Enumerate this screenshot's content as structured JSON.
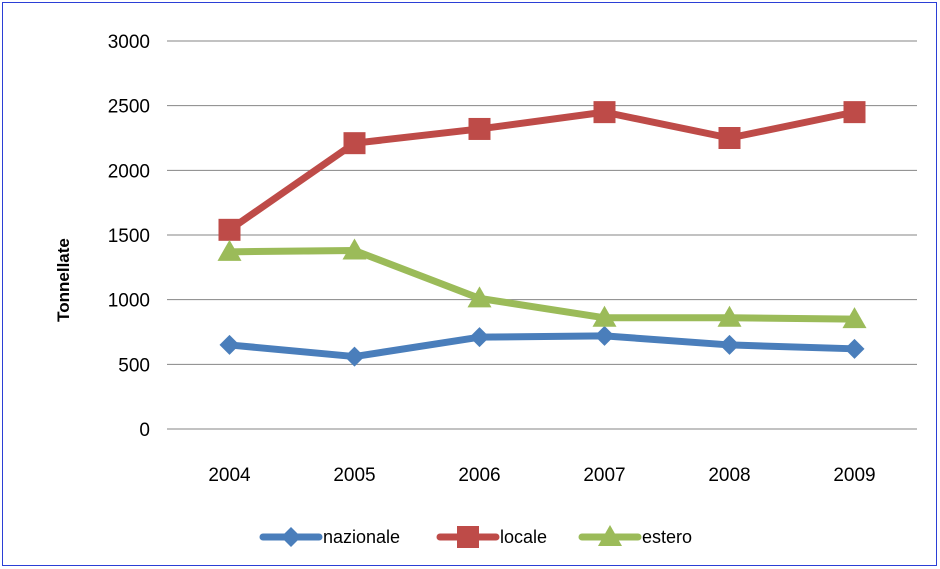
{
  "chart_data": {
    "type": "line",
    "title": "",
    "xlabel": "",
    "ylabel": "Tonnellate",
    "categories": [
      "2004",
      "2005",
      "2006",
      "2007",
      "2008",
      "2009"
    ],
    "ylim": [
      0,
      3000
    ],
    "yticks": [
      0,
      500,
      1000,
      1500,
      2000,
      2500,
      3000
    ],
    "grid": true,
    "legend_position": "bottom",
    "series": [
      {
        "name": "nazionale",
        "values": [
          650,
          560,
          710,
          720,
          650,
          620
        ],
        "color": "#4a7ebb",
        "marker": "diamond"
      },
      {
        "name": "locale",
        "values": [
          1540,
          2210,
          2320,
          2450,
          2250,
          2450
        ],
        "color": "#be4b48",
        "marker": "square"
      },
      {
        "name": "estero",
        "values": [
          1370,
          1380,
          1010,
          860,
          860,
          850
        ],
        "color": "#9bbb59",
        "marker": "triangle"
      }
    ]
  }
}
